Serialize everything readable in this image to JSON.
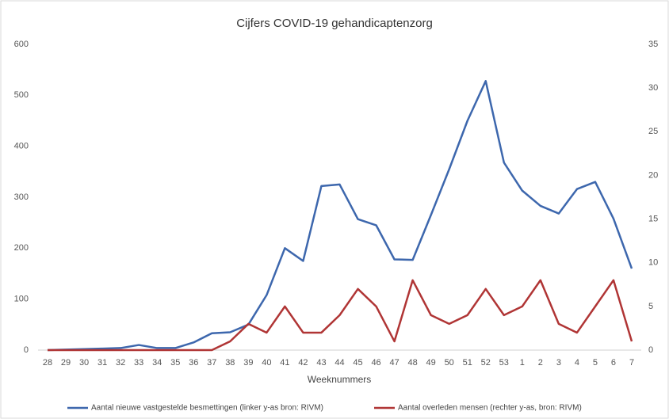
{
  "chart_data": {
    "type": "line",
    "title": "Cijfers COVID-19 gehandicaptenzorg",
    "x_label": "Weeknummers",
    "categories": [
      "28",
      "29",
      "30",
      "31",
      "32",
      "33",
      "34",
      "35",
      "36",
      "37",
      "38",
      "39",
      "40",
      "41",
      "42",
      "43",
      "44",
      "45",
      "46",
      "47",
      "48",
      "49",
      "50",
      "51",
      "52",
      "53",
      "1",
      "2",
      "3",
      "4",
      "5",
      "6",
      "7"
    ],
    "series": [
      {
        "name": "Aantal nieuwe vastgestelde besmettingen  (linker y-as bron: RIVM)",
        "color": "#3d67ad",
        "values": [
          0,
          1,
          2,
          3,
          4,
          10,
          4,
          4,
          15,
          33,
          35,
          50,
          108,
          200,
          175,
          322,
          325,
          257,
          245,
          178,
          177,
          265,
          355,
          450,
          528,
          368,
          313,
          283,
          268,
          316,
          330,
          258,
          160
        ]
      },
      {
        "name": "Aantal overleden mensen  (rechter y-as, bron: RIVM)",
        "color": "#b03535",
        "axis": "y2",
        "values": [
          0,
          0,
          0,
          0,
          0,
          0,
          0,
          0,
          0,
          0,
          1,
          3,
          2,
          5,
          2,
          2,
          4,
          7,
          5,
          1,
          8,
          4,
          3,
          4,
          7,
          4,
          5,
          8,
          3,
          2,
          5,
          8,
          1
        ]
      }
    ],
    "ylim": [
      0,
      600
    ],
    "yticks": [
      0,
      100,
      200,
      300,
      400,
      500,
      600
    ],
    "y2lim": [
      0,
      35
    ],
    "y2ticks": [
      0,
      5,
      10,
      15,
      20,
      25,
      30,
      35
    ],
    "grid": false
  }
}
